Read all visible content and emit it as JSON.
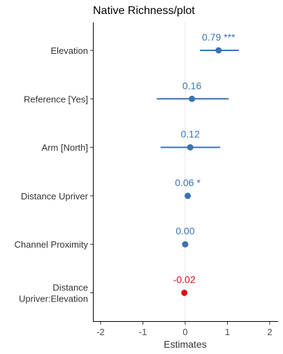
{
  "chart_data": {
    "type": "scatter",
    "subtype": "coefficient-plot",
    "title": "Native Richness/plot",
    "xlabel": "Estimates",
    "ylabel": "",
    "xlim": [
      -2.15,
      2.15
    ],
    "x_ticks": [
      -2,
      -1,
      0,
      1,
      2
    ],
    "x_tick_labels": [
      "-2",
      "-1",
      "0",
      "1",
      "2"
    ],
    "reference_line_at": 0,
    "grid": false,
    "legend": "none",
    "colors": {
      "positive": "#3a72b0",
      "negative": "#e8001b",
      "axis": "#000000",
      "reference": "#e5e5e5"
    },
    "terms": [
      {
        "label": [
          "Elevation"
        ],
        "estimate": 0.79,
        "ci_low": 0.35,
        "ci_high": 1.27,
        "value_label": "0.79 ***",
        "direction": "positive"
      },
      {
        "label": [
          "Reference [Yes]"
        ],
        "estimate": 0.16,
        "ci_low": -0.67,
        "ci_high": 1.03,
        "value_label": "0.16",
        "direction": "positive"
      },
      {
        "label": [
          "Arm [North]"
        ],
        "estimate": 0.12,
        "ci_low": -0.58,
        "ci_high": 0.83,
        "value_label": "0.12",
        "direction": "positive"
      },
      {
        "label": [
          "Distance Upriver"
        ],
        "estimate": 0.06,
        "ci_low": 0.06,
        "ci_high": 0.06,
        "value_label": "0.06 *",
        "direction": "positive"
      },
      {
        "label": [
          "Channel Proximity"
        ],
        "estimate": 0.0,
        "ci_low": 0.0,
        "ci_high": 0.0,
        "value_label": "0.00",
        "direction": "positive"
      },
      {
        "label": [
          "Distance",
          "Upriver:Elevation"
        ],
        "estimate": -0.02,
        "ci_low": -0.02,
        "ci_high": -0.02,
        "value_label": "-0.02",
        "direction": "negative"
      }
    ]
  }
}
